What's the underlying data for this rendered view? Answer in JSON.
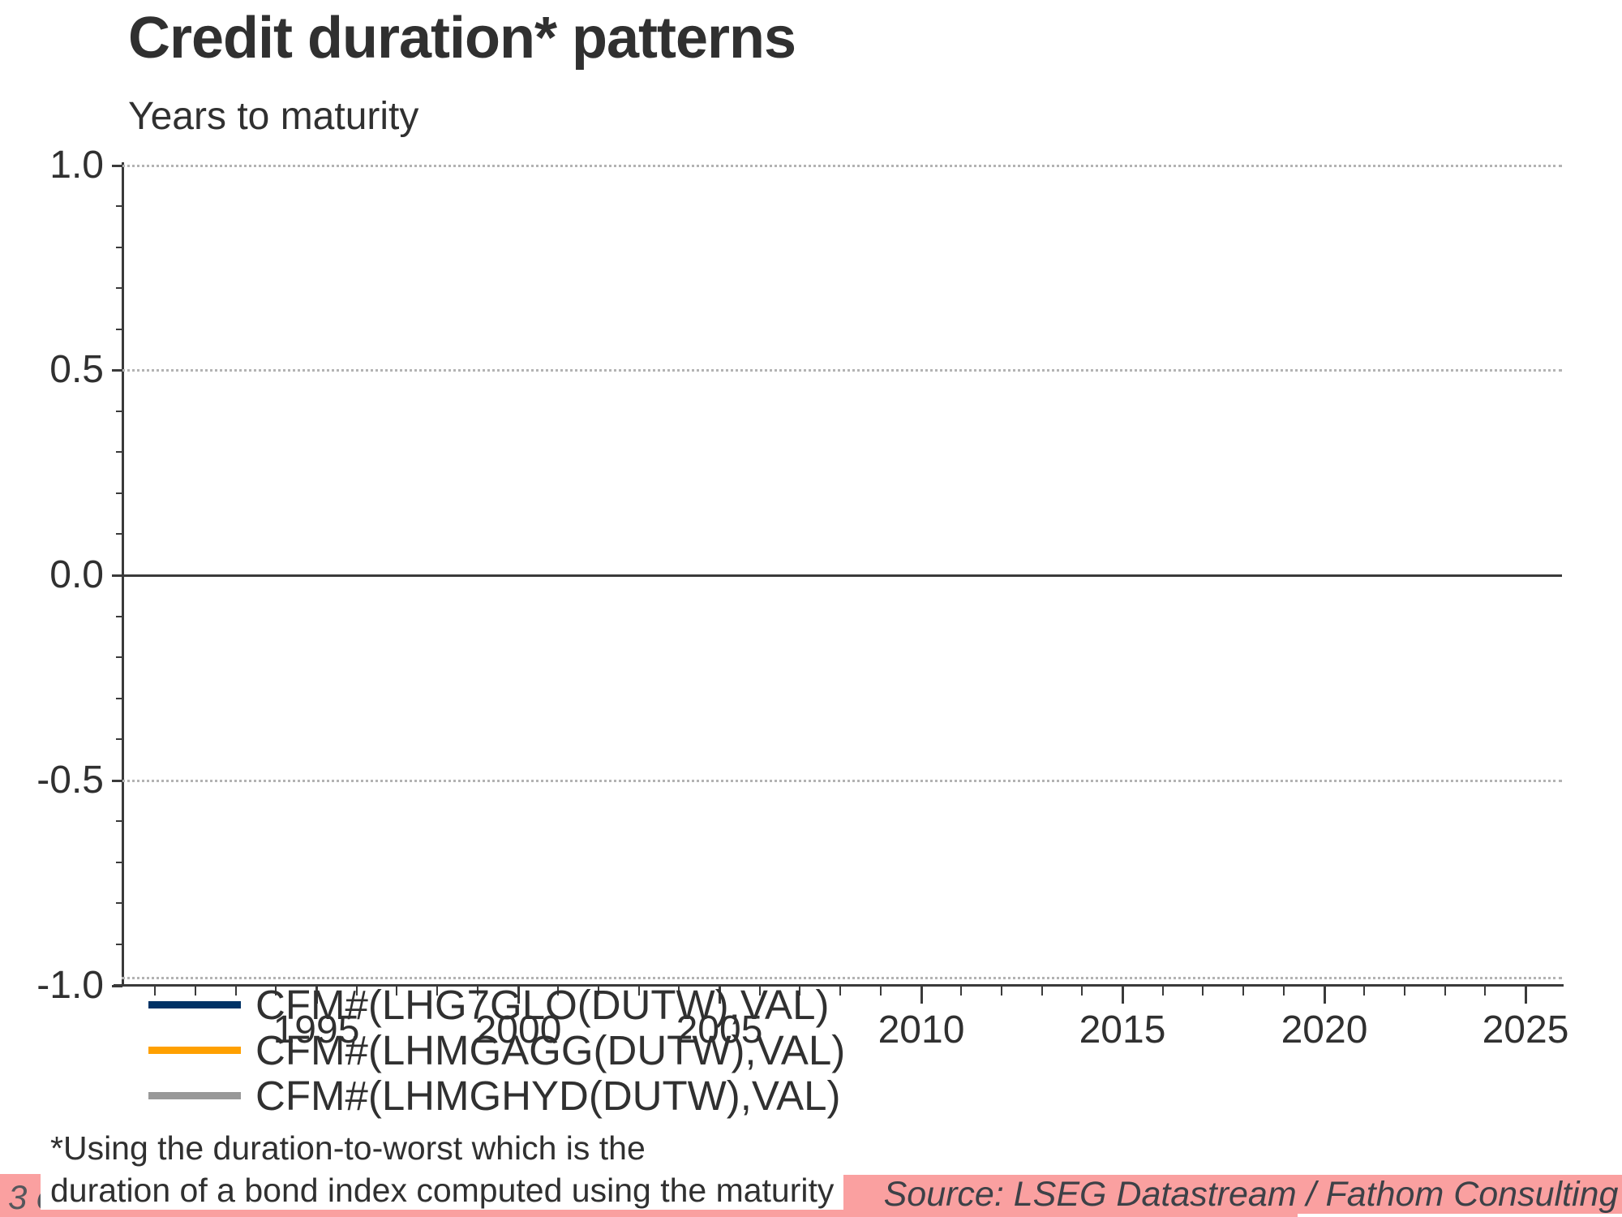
{
  "header": {
    "title": "Credit duration* patterns",
    "subtitle": "Years to maturity"
  },
  "y_axis": {
    "range": [
      -1.0,
      1.0
    ],
    "minor_step": 0.1,
    "major_ticks": [
      {
        "label": "1.0",
        "value": 1.0,
        "gridline": "dotted"
      },
      {
        "label": "0.5",
        "value": 0.5,
        "gridline": "dotted"
      },
      {
        "label": "0.0",
        "value": 0.0,
        "gridline": "solid"
      },
      {
        "label": "-0.5",
        "value": -0.5,
        "gridline": "dotted"
      },
      {
        "label": "-1.0",
        "value": -1.0,
        "gridline": "dotted"
      }
    ]
  },
  "x_axis": {
    "range": [
      1990,
      2026
    ],
    "minor_step": 1,
    "minor_years": [
      1991,
      2025
    ],
    "major_ticks": [
      {
        "label": "1995",
        "year": 1995
      },
      {
        "label": "2000",
        "year": 2000
      },
      {
        "label": "2005",
        "year": 2005
      },
      {
        "label": "2010",
        "year": 2010
      },
      {
        "label": "2015",
        "year": 2015
      },
      {
        "label": "2020",
        "year": 2020
      },
      {
        "label": "2025",
        "year": 2025
      }
    ]
  },
  "legend": {
    "entries": [
      {
        "label": "CFM#(LHG7GLO(DUTW),VAL)",
        "color": "#003366"
      },
      {
        "label": "CFM#(LHMGAGG(DUTW),VAL)",
        "color": "#FFA000"
      },
      {
        "label": "CFM#(LHMGHYD(DUTW),VAL)",
        "color": "#999999"
      }
    ]
  },
  "footnote": {
    "line1": "*Using the duration-to-worst which is the",
    "line2": "duration of a bond index computed using the maturity"
  },
  "corner_label": "3 e",
  "source": "Source: LSEG Datastream / Fathom Consulting",
  "colors": {
    "pink": "#FAA0A0",
    "axis": "#3a3a3a",
    "text": "#303030",
    "gridline": "#b3b3b3",
    "series_navy": "#003366",
    "series_orange": "#FFA000",
    "series_gray": "#999999"
  },
  "chart_data": {
    "type": "line",
    "title": "Credit duration* patterns",
    "ylabel": "Years to maturity",
    "xlabel": "",
    "xlim": [
      1990,
      2026
    ],
    "ylim": [
      -1.0,
      1.0
    ],
    "x_ticks": [
      1995,
      2000,
      2005,
      2010,
      2015,
      2020,
      2025
    ],
    "y_ticks": [
      1.0,
      0.5,
      0.0,
      -0.5,
      -1.0
    ],
    "grid": "horizontal dotted at ±1.0 and ±0.5; solid zero line at 0.0",
    "legend_position": "bottom-left below x-axis",
    "series": [
      {
        "name": "CFM#(LHG7GLO(DUTW),VAL)",
        "color": "#003366",
        "x": [],
        "values": []
      },
      {
        "name": "CFM#(LHMGAGG(DUTW),VAL)",
        "color": "#FFA000",
        "x": [],
        "values": []
      },
      {
        "name": "CFM#(LHMGHYD(DUTW),VAL)",
        "color": "#999999",
        "x": [],
        "values": []
      }
    ],
    "note": "Plot area is empty: no data points are drawn for any of the three listed series."
  }
}
